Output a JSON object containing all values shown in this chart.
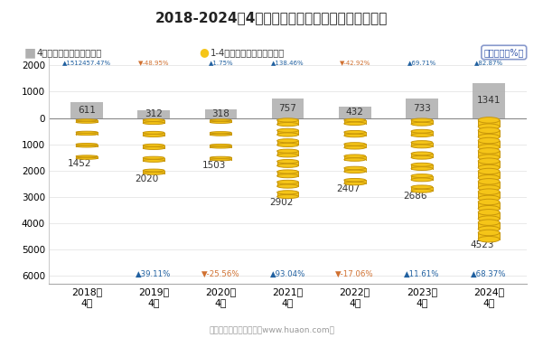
{
  "title": "2018-2024年4月大连商品交易所豆二期货成交金额",
  "years": [
    "2018年\n4月",
    "2019年\n4月",
    "2020年\n4月",
    "2021年\n4月",
    "2022年\n4月",
    "2023年\n4月",
    "2024年\n4月"
  ],
  "april_values": [
    611,
    312,
    318,
    757,
    432,
    733,
    1341
  ],
  "cumulative_values": [
    1452,
    2020,
    1503,
    2902,
    2407,
    2686,
    4523
  ],
  "april_growth": [
    "▲1512457.47%",
    "▼-48.95%",
    "▲1.75%",
    "▲138.46%",
    "▼-42.92%",
    "▲69.71%",
    "▲82.87%"
  ],
  "cumulative_growth": [
    "",
    "▲39.11%",
    "▼-25.56%",
    "▲93.04%",
    "▼-17.06%",
    "▲11.61%",
    "▲68.37%"
  ],
  "april_growth_up": [
    true,
    false,
    true,
    true,
    false,
    true,
    true
  ],
  "cumulative_growth_up": [
    true,
    true,
    false,
    true,
    false,
    true,
    true
  ],
  "bar_color": "#b0b0b0",
  "coin_fill": "#f5c518",
  "coin_edge": "#c8960a",
  "up_color": "#2060a0",
  "down_color": "#d07030",
  "background_color": "#ffffff",
  "ylabel_box": "同比增速（%）",
  "legend1": "4月期货成交金额（亿元）",
  "legend2": "1-4月期货成交金额（亿元）",
  "footer": "制图：华经产业研究院（www.huaon.com）"
}
